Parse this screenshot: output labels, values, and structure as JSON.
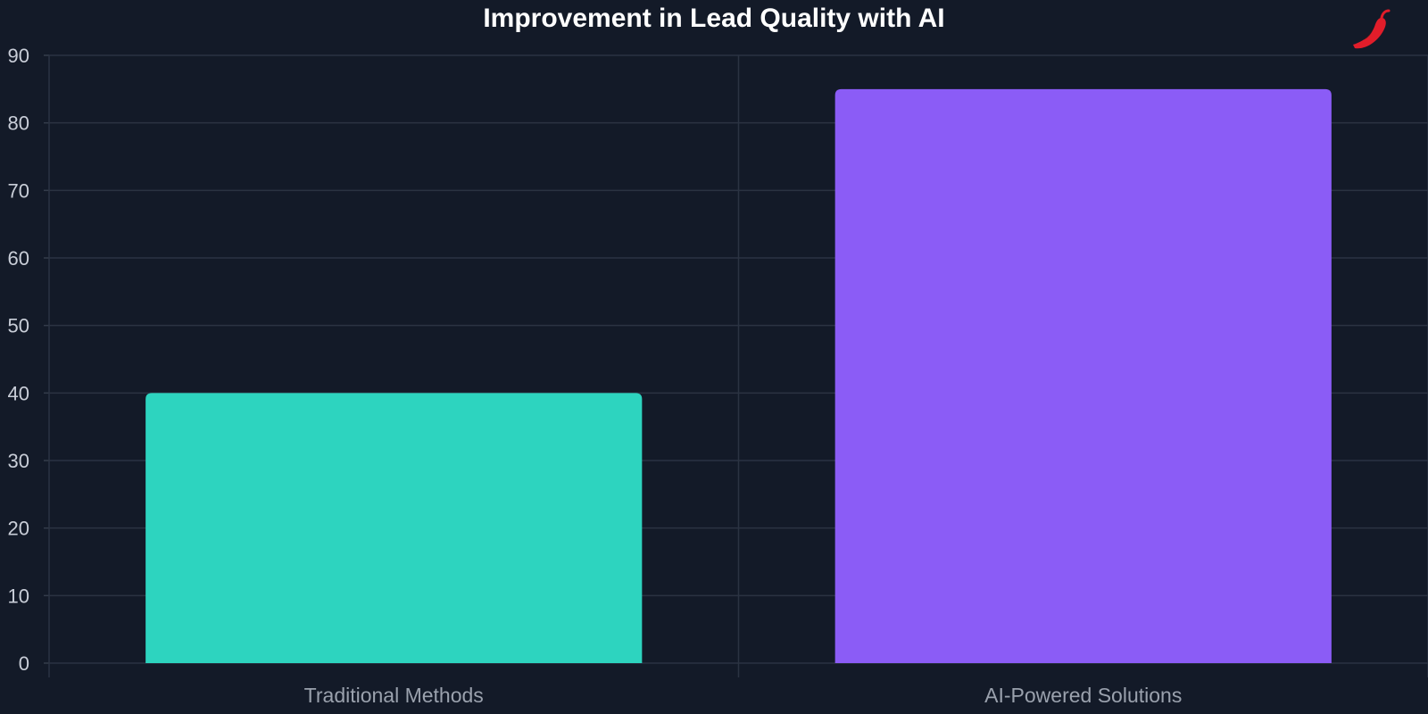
{
  "chart_data": {
    "type": "bar",
    "title": "Improvement in Lead Quality with AI",
    "categories": [
      "Traditional Methods",
      "AI-Powered Solutions"
    ],
    "values": [
      40,
      85
    ],
    "colors": [
      "#2dd4bf",
      "#8b5cf6"
    ],
    "xlabel": "",
    "ylabel": "",
    "ylim": [
      0,
      90
    ],
    "yticks": [
      0,
      10,
      20,
      30,
      40,
      50,
      60,
      70,
      80,
      90
    ],
    "grid": true,
    "legend": "none"
  },
  "logo": {
    "icon": "chili-pepper-icon",
    "color": "#e11d2a"
  }
}
